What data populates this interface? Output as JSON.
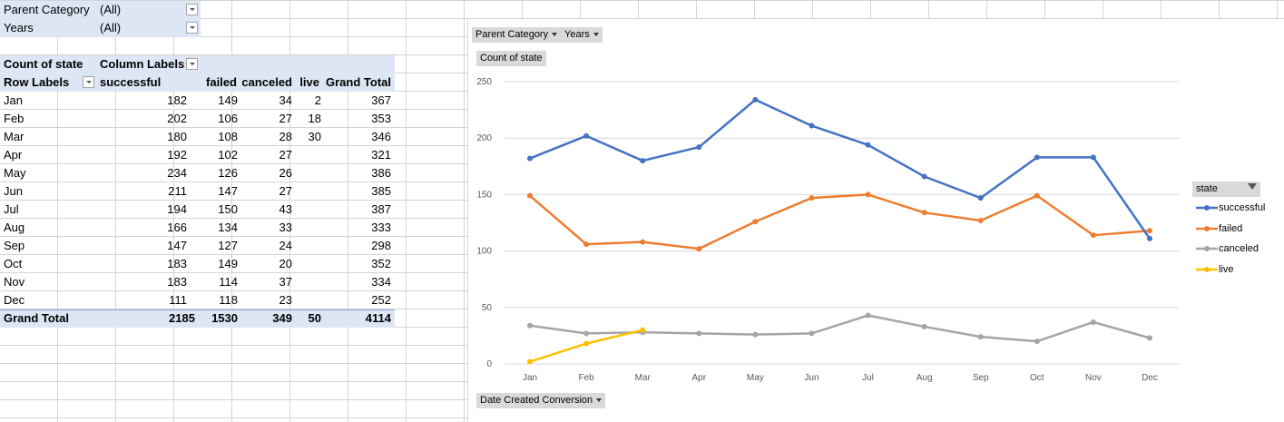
{
  "filters": [
    {
      "label": "Parent Category",
      "value": "(All)"
    },
    {
      "label": "Years",
      "value": "(All)"
    }
  ],
  "pivot": {
    "corner": "Count of state",
    "column_labels": "Column Labels",
    "row_labels": "Row Labels",
    "columns": [
      "successful",
      "failed",
      "canceled",
      "live",
      "Grand Total"
    ],
    "rows": [
      {
        "label": "Jan",
        "values": [
          "182",
          "149",
          "34",
          "2",
          "367"
        ]
      },
      {
        "label": "Feb",
        "values": [
          "202",
          "106",
          "27",
          "18",
          "353"
        ]
      },
      {
        "label": "Mar",
        "values": [
          "180",
          "108",
          "28",
          "30",
          "346"
        ]
      },
      {
        "label": "Apr",
        "values": [
          "192",
          "102",
          "27",
          "",
          "321"
        ]
      },
      {
        "label": "May",
        "values": [
          "234",
          "126",
          "26",
          "",
          "386"
        ]
      },
      {
        "label": "Jun",
        "values": [
          "211",
          "147",
          "27",
          "",
          "385"
        ]
      },
      {
        "label": "Jul",
        "values": [
          "194",
          "150",
          "43",
          "",
          "387"
        ]
      },
      {
        "label": "Aug",
        "values": [
          "166",
          "134",
          "33",
          "",
          "333"
        ]
      },
      {
        "label": "Sep",
        "values": [
          "147",
          "127",
          "24",
          "",
          "298"
        ]
      },
      {
        "label": "Oct",
        "values": [
          "183",
          "149",
          "20",
          "",
          "352"
        ]
      },
      {
        "label": "Nov",
        "values": [
          "183",
          "114",
          "37",
          "",
          "334"
        ]
      },
      {
        "label": "Dec",
        "values": [
          "111",
          "118",
          "23",
          "",
          "252"
        ]
      }
    ],
    "total": {
      "label": "Grand Total",
      "values": [
        "2185",
        "1530",
        "349",
        "50",
        "4114"
      ]
    }
  },
  "chart_buttons": {
    "parent_category": "Parent Category",
    "years": "Years",
    "values_field": "Count of state",
    "axis_field": "Date Created Conversion"
  },
  "legend": {
    "title": "state",
    "colors": {
      "successful": "#4472c4",
      "failed": "#ed7d31",
      "canceled": "#a5a5a5",
      "live": "#ffc000"
    }
  },
  "chart_data": {
    "type": "line",
    "categories": [
      "Jan",
      "Feb",
      "Mar",
      "Apr",
      "May",
      "Jun",
      "Jul",
      "Aug",
      "Sep",
      "Oct",
      "Nov",
      "Dec"
    ],
    "series": [
      {
        "name": "successful",
        "values": [
          182,
          202,
          180,
          192,
          234,
          211,
          194,
          166,
          147,
          183,
          183,
          111
        ]
      },
      {
        "name": "failed",
        "values": [
          149,
          106,
          108,
          102,
          126,
          147,
          150,
          134,
          127,
          149,
          114,
          118
        ]
      },
      {
        "name": "canceled",
        "values": [
          34,
          27,
          28,
          27,
          26,
          27,
          43,
          33,
          24,
          20,
          37,
          23
        ]
      },
      {
        "name": "live",
        "values": [
          2,
          18,
          30,
          null,
          null,
          null,
          null,
          null,
          null,
          null,
          null,
          null
        ]
      }
    ],
    "ylim": [
      0,
      250
    ],
    "yticks": [
      0,
      50,
      100,
      150,
      200,
      250
    ],
    "grid": true,
    "legend_position": "right"
  }
}
